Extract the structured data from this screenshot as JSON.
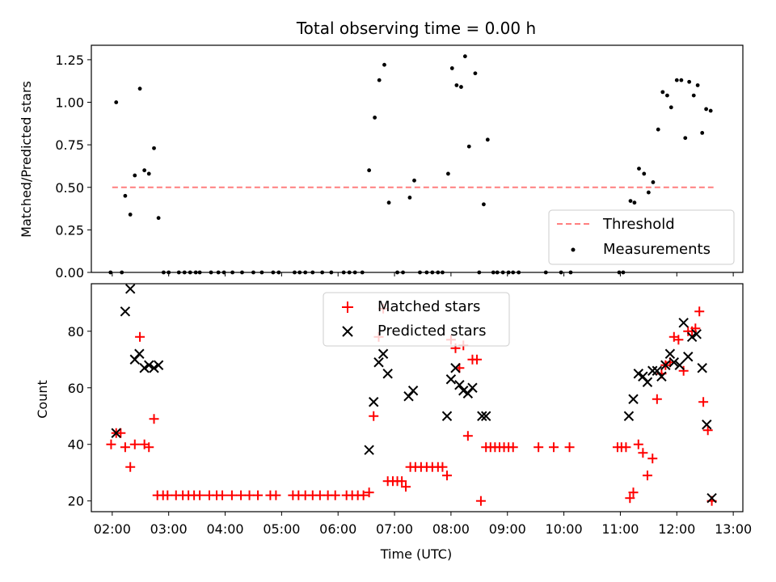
{
  "chart_data": [
    {
      "type": "scatter",
      "title": "Total observing time = 0.00 h",
      "ylabel": "Matched/Predicted stars",
      "xlabel": "",
      "ylim": [
        0,
        1.335
      ],
      "xlim": [
        1.63,
        13.17
      ],
      "yticks": [
        0,
        0.25,
        0.5,
        0.75,
        1.0,
        1.25
      ],
      "ytick_labels": [
        "0.00",
        "0.25",
        "0.50",
        "0.75",
        "1.00",
        "1.25"
      ],
      "legend": {
        "placement": "lower right",
        "entries": [
          "Threshold",
          "Measurements"
        ]
      },
      "threshold": {
        "name": "Threshold",
        "y": 0.5,
        "x_range": [
          2.0,
          12.65
        ],
        "color": "#ff7f7f",
        "style": "dashed"
      },
      "series": [
        {
          "name": "Measurements",
          "color": "#000000",
          "marker": "dot",
          "points": [
            [
              1.97,
              0
            ],
            [
              2.07,
              1.0
            ],
            [
              2.17,
              0
            ],
            [
              2.23,
              0.45
            ],
            [
              2.32,
              0.34
            ],
            [
              2.4,
              0.57
            ],
            [
              2.49,
              1.08
            ],
            [
              2.57,
              0.6
            ],
            [
              2.65,
              0.58
            ],
            [
              2.74,
              0.73
            ],
            [
              2.82,
              0.32
            ],
            [
              2.91,
              0
            ],
            [
              3.0,
              0
            ],
            [
              3.18,
              0
            ],
            [
              3.28,
              0
            ],
            [
              3.38,
              0
            ],
            [
              3.48,
              0
            ],
            [
              3.55,
              0
            ],
            [
              3.75,
              0
            ],
            [
              3.88,
              0
            ],
            [
              3.98,
              0
            ],
            [
              4.13,
              0
            ],
            [
              4.3,
              0
            ],
            [
              4.5,
              0
            ],
            [
              4.65,
              0
            ],
            [
              4.85,
              0
            ],
            [
              4.95,
              0
            ],
            [
              5.23,
              0
            ],
            [
              5.32,
              0
            ],
            [
              5.42,
              0
            ],
            [
              5.55,
              0
            ],
            [
              5.72,
              0
            ],
            [
              5.88,
              0
            ],
            [
              6.1,
              0
            ],
            [
              6.2,
              0
            ],
            [
              6.3,
              0
            ],
            [
              6.43,
              0
            ],
            [
              6.55,
              0.6
            ],
            [
              6.65,
              0.91
            ],
            [
              6.73,
              1.13
            ],
            [
              6.82,
              1.22
            ],
            [
              6.9,
              0.41
            ],
            [
              7.05,
              0
            ],
            [
              7.15,
              0
            ],
            [
              7.27,
              0.44
            ],
            [
              7.35,
              0.54
            ],
            [
              7.45,
              0
            ],
            [
              7.57,
              0
            ],
            [
              7.67,
              0
            ],
            [
              7.77,
              0
            ],
            [
              7.85,
              0
            ],
            [
              7.95,
              0.58
            ],
            [
              8.02,
              1.2
            ],
            [
              8.1,
              1.1
            ],
            [
              8.18,
              1.09
            ],
            [
              8.25,
              1.27
            ],
            [
              8.32,
              0.74
            ],
            [
              8.43,
              1.17
            ],
            [
              8.5,
              0
            ],
            [
              8.58,
              0.4
            ],
            [
              8.65,
              0.78
            ],
            [
              8.75,
              0
            ],
            [
              8.82,
              0
            ],
            [
              8.92,
              0
            ],
            [
              9.02,
              0
            ],
            [
              9.1,
              0
            ],
            [
              9.2,
              0
            ],
            [
              9.68,
              0
            ],
            [
              9.95,
              0
            ],
            [
              10.12,
              0
            ],
            [
              10.98,
              0
            ],
            [
              11.05,
              0
            ],
            [
              11.18,
              0.42
            ],
            [
              11.25,
              0.41
            ],
            [
              11.33,
              0.61
            ],
            [
              11.42,
              0.58
            ],
            [
              11.5,
              0.47
            ],
            [
              11.58,
              0.53
            ],
            [
              11.67,
              0.84
            ],
            [
              11.75,
              1.06
            ],
            [
              11.83,
              1.04
            ],
            [
              11.9,
              0.97
            ],
            [
              12.0,
              1.13
            ],
            [
              12.08,
              1.13
            ],
            [
              12.15,
              0.79
            ],
            [
              12.22,
              1.12
            ],
            [
              12.3,
              1.04
            ],
            [
              12.37,
              1.1
            ],
            [
              12.45,
              0.82
            ],
            [
              12.52,
              0.96
            ],
            [
              12.6,
              0.95
            ]
          ]
        }
      ]
    },
    {
      "type": "scatter",
      "title": "",
      "ylabel": "Count",
      "xlabel": "Time (UTC)",
      "ylim": [
        16.2,
        96.8
      ],
      "xlim": [
        1.63,
        13.17
      ],
      "yticks": [
        20,
        40,
        60,
        80
      ],
      "ytick_labels": [
        "20",
        "40",
        "60",
        "80"
      ],
      "xticks": [
        2,
        3,
        4,
        5,
        6,
        7,
        8,
        9,
        10,
        11,
        12,
        13
      ],
      "xtick_labels": [
        "02:00",
        "03:00",
        "04:00",
        "05:00",
        "06:00",
        "07:00",
        "08:00",
        "09:00",
        "10:00",
        "11:00",
        "12:00",
        "13:00"
      ],
      "legend": {
        "placement": "upper center",
        "entries": [
          "Matched stars",
          "Predicted stars"
        ]
      },
      "series": [
        {
          "name": "Matched stars",
          "color": "#ff0000",
          "marker": "plus",
          "points": [
            [
              1.98,
              40
            ],
            [
              2.07,
              44
            ],
            [
              2.15,
              44
            ],
            [
              2.23,
              39
            ],
            [
              2.32,
              32
            ],
            [
              2.4,
              40
            ],
            [
              2.49,
              78
            ],
            [
              2.57,
              40
            ],
            [
              2.65,
              39
            ],
            [
              2.74,
              49
            ],
            [
              2.8,
              22
            ],
            [
              2.9,
              22
            ],
            [
              2.98,
              22
            ],
            [
              3.13,
              22
            ],
            [
              3.25,
              22
            ],
            [
              3.35,
              22
            ],
            [
              3.45,
              22
            ],
            [
              3.55,
              22
            ],
            [
              3.72,
              22
            ],
            [
              3.85,
              22
            ],
            [
              3.95,
              22
            ],
            [
              4.12,
              22
            ],
            [
              4.28,
              22
            ],
            [
              4.43,
              22
            ],
            [
              4.58,
              22
            ],
            [
              4.8,
              22
            ],
            [
              4.9,
              22
            ],
            [
              5.2,
              22
            ],
            [
              5.3,
              22
            ],
            [
              5.42,
              22
            ],
            [
              5.55,
              22
            ],
            [
              5.68,
              22
            ],
            [
              5.82,
              22
            ],
            [
              5.95,
              22
            ],
            [
              6.15,
              22
            ],
            [
              6.25,
              22
            ],
            [
              6.35,
              22
            ],
            [
              6.45,
              22
            ],
            [
              6.55,
              23
            ],
            [
              6.63,
              50
            ],
            [
              6.72,
              78
            ],
            [
              6.8,
              88
            ],
            [
              6.88,
              27
            ],
            [
              6.97,
              27
            ],
            [
              7.05,
              27
            ],
            [
              7.13,
              27
            ],
            [
              7.2,
              25
            ],
            [
              7.28,
              32
            ],
            [
              7.37,
              32
            ],
            [
              7.47,
              32
            ],
            [
              7.57,
              32
            ],
            [
              7.67,
              32
            ],
            [
              7.77,
              32
            ],
            [
              7.85,
              32
            ],
            [
              7.93,
              29
            ],
            [
              8.0,
              77
            ],
            [
              8.08,
              74
            ],
            [
              8.15,
              67
            ],
            [
              8.22,
              75
            ],
            [
              8.3,
              43
            ],
            [
              8.38,
              70
            ],
            [
              8.46,
              70
            ],
            [
              8.53,
              20
            ],
            [
              8.62,
              39
            ],
            [
              8.7,
              39
            ],
            [
              8.78,
              39
            ],
            [
              8.86,
              39
            ],
            [
              8.94,
              39
            ],
            [
              9.02,
              39
            ],
            [
              9.1,
              39
            ],
            [
              9.55,
              39
            ],
            [
              9.82,
              39
            ],
            [
              10.1,
              39
            ],
            [
              10.95,
              39
            ],
            [
              11.02,
              39
            ],
            [
              11.1,
              39
            ],
            [
              11.17,
              21
            ],
            [
              11.23,
              23
            ],
            [
              11.32,
              40
            ],
            [
              11.4,
              37
            ],
            [
              11.48,
              29
            ],
            [
              11.57,
              35
            ],
            [
              11.65,
              56
            ],
            [
              11.73,
              65
            ],
            [
              11.8,
              68
            ],
            [
              11.88,
              69
            ],
            [
              11.95,
              78
            ],
            [
              12.03,
              77
            ],
            [
              12.12,
              66
            ],
            [
              12.2,
              80
            ],
            [
              12.27,
              80
            ],
            [
              12.33,
              81
            ],
            [
              12.4,
              87
            ],
            [
              12.47,
              55
            ],
            [
              12.55,
              45
            ],
            [
              12.62,
              20
            ]
          ]
        },
        {
          "name": "Predicted stars",
          "color": "#000000",
          "marker": "x",
          "points": [
            [
              2.07,
              44
            ],
            [
              2.23,
              87
            ],
            [
              2.32,
              95
            ],
            [
              2.4,
              70
            ],
            [
              2.48,
              72
            ],
            [
              2.57,
              67
            ],
            [
              2.65,
              68
            ],
            [
              2.74,
              67
            ],
            [
              2.82,
              68
            ],
            [
              6.55,
              38
            ],
            [
              6.63,
              55
            ],
            [
              6.72,
              69
            ],
            [
              6.8,
              72
            ],
            [
              6.88,
              65
            ],
            [
              7.25,
              57
            ],
            [
              7.33,
              59
            ],
            [
              7.93,
              50
            ],
            [
              8.0,
              63
            ],
            [
              8.08,
              67
            ],
            [
              8.15,
              61
            ],
            [
              8.22,
              59
            ],
            [
              8.3,
              58
            ],
            [
              8.38,
              60
            ],
            [
              8.55,
              50
            ],
            [
              8.62,
              50
            ],
            [
              11.15,
              50
            ],
            [
              11.23,
              56
            ],
            [
              11.32,
              65
            ],
            [
              11.4,
              64
            ],
            [
              11.48,
              62
            ],
            [
              11.57,
              66
            ],
            [
              11.65,
              66
            ],
            [
              11.73,
              64
            ],
            [
              11.8,
              68
            ],
            [
              11.88,
              72
            ],
            [
              11.95,
              69
            ],
            [
              12.05,
              68
            ],
            [
              12.12,
              83
            ],
            [
              12.2,
              71
            ],
            [
              12.27,
              78
            ],
            [
              12.35,
              79
            ],
            [
              12.45,
              67
            ],
            [
              12.53,
              47
            ],
            [
              12.62,
              21
            ]
          ]
        }
      ]
    }
  ]
}
